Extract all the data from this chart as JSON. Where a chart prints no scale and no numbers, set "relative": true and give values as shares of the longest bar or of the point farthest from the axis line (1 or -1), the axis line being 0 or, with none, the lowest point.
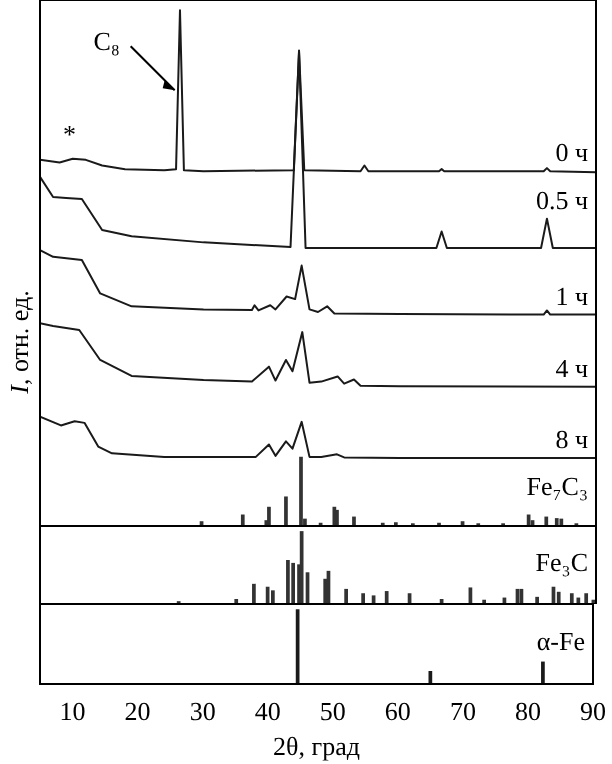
{
  "chart_data": [
    {
      "type": "line",
      "ylabel": "I, отн. ед.",
      "relative": true,
      "xlim": [
        5,
        90
      ],
      "tick_labels": false,
      "legend": false,
      "grid": false,
      "marker": "none",
      "line_style": "solid",
      "annotations": [
        {
          "text": "*",
          "x": 9.5,
          "y": 0.72
        },
        {
          "text": "C₈",
          "x": 26.2,
          "y": 0.845
        }
      ],
      "series": [
        {
          "name": "0 ч",
          "color": "#1a1a1a",
          "x": [
            5,
            8,
            10,
            12,
            14.5,
            18,
            24,
            25.8,
            26.4,
            27,
            30,
            43.8,
            44.6,
            45.4,
            54,
            54.6,
            55.2,
            66,
            66.4,
            66.8,
            82,
            82.5,
            83,
            90
          ],
          "values": [
            0.71,
            0.705,
            0.712,
            0.71,
            0.699,
            0.692,
            0.69,
            0.692,
            1.0,
            0.69,
            0.688,
            0.69,
            0.922,
            0.69,
            0.688,
            0.699,
            0.688,
            0.688,
            0.692,
            0.688,
            0.688,
            0.694,
            0.688,
            0.686
          ]
        },
        {
          "name": "0.5 ч",
          "color": "#1a1a1a",
          "x": [
            5,
            7,
            9,
            11.4,
            14.5,
            19,
            30,
            43.3,
            44.6,
            45.6,
            50,
            65.6,
            66.4,
            67.2,
            81.6,
            82.5,
            83.4,
            90
          ],
          "values": [
            0.677,
            0.638,
            0.636,
            0.634,
            0.574,
            0.562,
            0.55,
            0.541,
            0.919,
            0.539,
            0.539,
            0.539,
            0.571,
            0.539,
            0.539,
            0.596,
            0.539,
            0.539
          ]
        },
        {
          "name": "1 ч",
          "color": "#1a1a1a",
          "x": [
            5,
            7,
            11.4,
            14.2,
            19,
            30,
            37.4,
            37.8,
            38.4,
            40.2,
            41,
            42.7,
            44,
            45,
            46.2,
            47.5,
            48.9,
            50,
            60,
            82,
            82.5,
            83,
            90
          ],
          "values": [
            0.535,
            0.522,
            0.516,
            0.451,
            0.426,
            0.42,
            0.419,
            0.428,
            0.418,
            0.428,
            0.42,
            0.445,
            0.44,
            0.505,
            0.42,
            0.415,
            0.426,
            0.412,
            0.411,
            0.41,
            0.418,
            0.41,
            0.41
          ]
        },
        {
          "name": "4 ч",
          "color": "#1a1a1a",
          "x": [
            5,
            7,
            11,
            14.2,
            19,
            30,
            37.4,
            40,
            41,
            42.6,
            43.6,
            45.1,
            46.2,
            48,
            50.5,
            51.5,
            53,
            54,
            60,
            90
          ],
          "values": [
            0.393,
            0.388,
            0.38,
            0.322,
            0.291,
            0.283,
            0.28,
            0.309,
            0.282,
            0.322,
            0.3,
            0.376,
            0.278,
            0.28,
            0.29,
            0.276,
            0.284,
            0.272,
            0.271,
            0.27
          ]
        },
        {
          "name": "8 ч",
          "color": "#1a1a1a",
          "x": [
            5,
            8.2,
            10.3,
            11.8,
            13.9,
            16,
            24,
            38,
            40,
            41,
            42.6,
            43.6,
            45,
            46.2,
            48,
            50.4,
            51.5,
            60,
            90
          ],
          "values": [
            0.212,
            0.195,
            0.203,
            0.2,
            0.154,
            0.141,
            0.134,
            0.134,
            0.158,
            0.136,
            0.164,
            0.15,
            0.202,
            0.134,
            0.134,
            0.139,
            0.133,
            0.132,
            0.132
          ]
        },
        {
          "name": "Fe₇C₃",
          "type": "bar",
          "color": "#333333",
          "x": [
            29.7,
            36,
            39.6,
            40,
            42.6,
            44.9,
            45.5,
            47.9,
            50,
            50.4,
            53,
            57.4,
            59.4,
            62,
            66,
            69.6,
            72,
            75.8,
            79.7,
            80.3,
            82.4,
            84,
            84.7,
            87
          ],
          "values": [
            0.008,
            0.021,
            0.01,
            0.036,
            0.056,
            0.133,
            0.013,
            0.005,
            0.036,
            0.03,
            0.017,
            0.005,
            0.006,
            0.004,
            0.005,
            0.008,
            0.004,
            0.004,
            0.021,
            0.01,
            0.017,
            0.014,
            0.013,
            0.004
          ]
        }
      ]
    },
    {
      "type": "bar",
      "relative": true,
      "xlim": [
        5,
        90
      ],
      "tick_labels": false,
      "legend": false,
      "grid": false,
      "series": [
        {
          "name": "Fe₃C",
          "color": "#333333",
          "x": [
            26.2,
            35,
            37.7,
            39.8,
            40.6,
            42.9,
            43.7,
            44.6,
            45.0,
            45.9,
            48.6,
            49.1,
            51.8,
            54.4,
            56,
            58,
            61.5,
            66.4,
            70.8,
            72.9,
            76,
            78,
            78.6,
            81,
            83.5,
            84.3,
            86.3,
            87.3,
            88.5,
            89.6
          ],
          "values": [
            0.03,
            0.06,
            0.27,
            0.23,
            0.18,
            0.6,
            0.56,
            0.54,
            1,
            0.43,
            0.34,
            0.45,
            0.2,
            0.14,
            0.11,
            0.17,
            0.14,
            0.06,
            0.22,
            0.05,
            0.08,
            0.2,
            0.2,
            0.09,
            0.23,
            0.16,
            0.14,
            0.08,
            0.14,
            0.05
          ]
        }
      ]
    },
    {
      "type": "bar",
      "relative": true,
      "xlabel": "2θ, град",
      "xlim": [
        5,
        90
      ],
      "xticks": [
        10,
        20,
        30,
        40,
        50,
        60,
        70,
        80,
        90
      ],
      "tick_labels": "x",
      "legend": false,
      "grid": false,
      "series": [
        {
          "name": "α-Fe",
          "color": "#1a1a1a",
          "x": [
            44.6,
            65,
            82.3
          ],
          "values": [
            1,
            0.167,
            0.294
          ]
        }
      ]
    }
  ]
}
